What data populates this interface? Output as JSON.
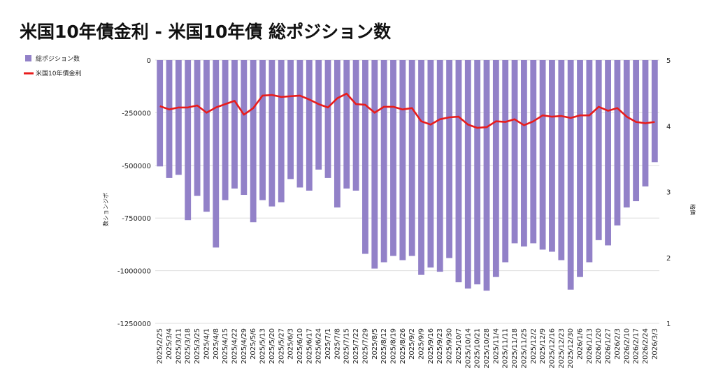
{
  "chart_data": {
    "type": "bar+line",
    "title": "米国10年債金利 - 米国10年債 総ポジション数",
    "legend": [
      "総ポジション数",
      "米国10年債金利"
    ],
    "legend_position": "top-left",
    "ylabel_left": "数ションジポ",
    "ylabel_right": "格価",
    "left_axis": {
      "min": -1250000,
      "max": 0,
      "ticks": [
        0,
        -250000,
        -500000,
        -750000,
        -1000000,
        -1250000
      ]
    },
    "right_axis": {
      "min": 1,
      "max": 5,
      "ticks": [
        5,
        4,
        3,
        2,
        1
      ]
    },
    "categories": [
      "2025/2/25",
      "2025/3/4",
      "2025/3/11",
      "2025/3/18",
      "2025/3/25",
      "2025/4/1",
      "2025/4/8",
      "2025/4/15",
      "2025/4/22",
      "2025/4/29",
      "2025/5/6",
      "2025/5/13",
      "2025/5/20",
      "2025/5/27",
      "2025/6/3",
      "2025/6/10",
      "2025/6/17",
      "2025/6/24",
      "2025/7/1",
      "2025/7/8",
      "2025/7/15",
      "2025/7/22",
      "2025/7/29",
      "2025/8/5",
      "2025/8/12",
      "2025/8/19",
      "2025/8/26",
      "2025/9/2",
      "2025/9/9",
      "2025/9/16",
      "2025/9/23",
      "2025/9/30",
      "2025/10/7",
      "2025/10/14",
      "2025/10/21",
      "2025/10/28",
      "2025/11/4",
      "2025/11/11",
      "2025/11/18",
      "2025/11/25",
      "2025/12/2",
      "2025/12/9",
      "2025/12/16",
      "2025/12/23",
      "2025/12/30",
      "2026/1/6",
      "2026/1/13",
      "2026/1/20",
      "2026/1/27",
      "2026/2/3",
      "2026/2/10",
      "2026/2/17",
      "2026/2/24",
      "2026/3/3"
    ],
    "x_tick_labels": [
      "2025/2/25",
      "2025/3/4",
      "2025/3/11",
      "2025/3/18",
      "2025/3/25",
      "2025/4/1",
      "2025/4/8",
      "2025/4/15",
      "2025/4/22",
      "2025/4/29",
      "2025/5/6",
      "2025/5/13",
      "2025/5/20",
      "2025/5/27",
      "2025/6/3",
      "2025/6/10",
      "2025/6/17",
      "2025/6/24",
      "2025/7/1",
      "2025/7/8",
      "2025/7/15",
      "2025/7/22",
      "2025/7/29",
      "2025/8/5",
      "2025/8/12",
      "2025/8/19",
      "2025/8/26",
      "2025/9/2",
      "2025/9/9",
      "2025/9/16",
      "2025/9/23",
      "2025/9/30",
      "2025/10/7",
      "2025/10/14",
      "2025/10/21",
      "2025/10/28",
      "2025/11/4",
      "2025/11/11",
      "2025/11/18",
      "2025/11/25",
      "2025/12/2",
      "2025/12/9",
      "2025/12/16",
      "2025/12/23",
      "2025/12/30",
      "2026/1/6",
      "2026/1/13",
      "2026/1/20",
      "2026/1/27",
      "2026/2/3",
      "2026/2/10",
      "2026/2/17",
      "2026/2/24",
      "2026/3/3"
    ],
    "series": [
      {
        "name": "総ポジション数",
        "type": "bar",
        "axis": "left",
        "color": "#9281C8",
        "values": [
          -505000,
          -560000,
          -545000,
          -760000,
          -645000,
          -720000,
          -890000,
          -665000,
          -610000,
          -640000,
          -770000,
          -665000,
          -695000,
          -675000,
          -565000,
          -605000,
          -620000,
          -520000,
          -560000,
          -700000,
          -610000,
          -620000,
          -920000,
          -990000,
          -960000,
          -930000,
          -950000,
          -930000,
          -1020000,
          -985000,
          -1005000,
          -940000,
          -1055000,
          -1085000,
          -1065000,
          -1095000,
          -1030000,
          -960000,
          -870000,
          -885000,
          -870000,
          -900000,
          -910000,
          -950000,
          -1090000,
          -1030000,
          -960000,
          -855000,
          -880000,
          -785000,
          -700000,
          -670000,
          -600000,
          -485000
        ]
      },
      {
        "name": "米国10年債金利",
        "type": "line",
        "axis": "right",
        "color": "#E81C1C",
        "values": [
          4.3,
          4.25,
          4.28,
          4.28,
          4.31,
          4.2,
          4.28,
          4.33,
          4.38,
          4.17,
          4.27,
          4.46,
          4.47,
          4.44,
          4.45,
          4.46,
          4.4,
          4.33,
          4.28,
          4.42,
          4.49,
          4.33,
          4.32,
          4.2,
          4.29,
          4.29,
          4.25,
          4.27,
          4.07,
          4.02,
          4.1,
          4.13,
          4.14,
          4.02,
          3.97,
          3.98,
          4.07,
          4.06,
          4.1,
          4.01,
          4.07,
          4.16,
          4.14,
          4.15,
          4.12,
          4.16,
          4.16,
          4.29,
          4.23,
          4.27,
          4.14,
          4.06,
          4.04,
          4.06
        ]
      }
    ]
  }
}
